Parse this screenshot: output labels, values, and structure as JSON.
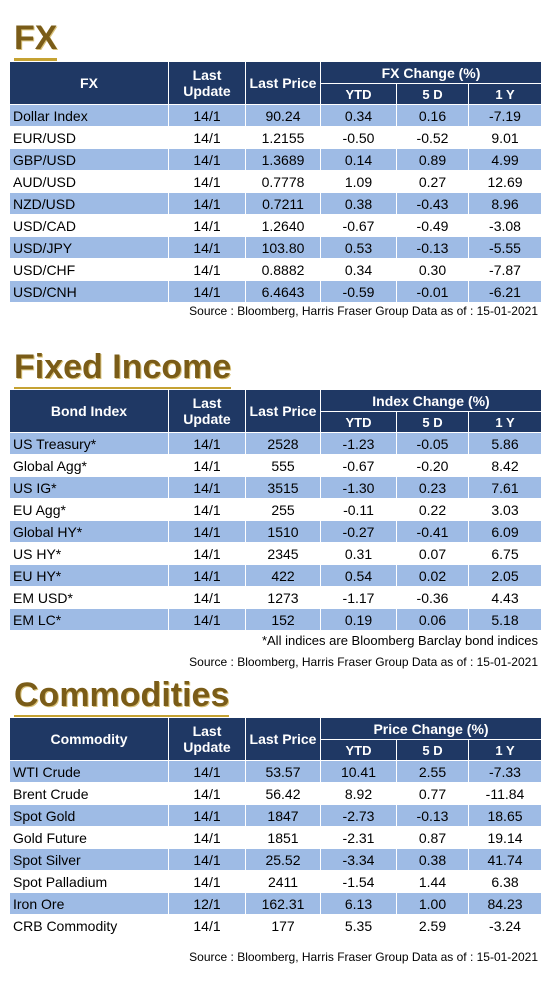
{
  "fx": {
    "title": "FX",
    "header": {
      "name": "FX",
      "last_update": "Last Update",
      "last_price": "Last Price",
      "group": "FX Change (%)",
      "ytd": "YTD",
      "d5": "5 D",
      "y1": "1 Y"
    },
    "rows": [
      {
        "name": "Dollar Index",
        "update": "14/1",
        "price": "90.24",
        "ytd": "0.34",
        "d5": "0.16",
        "y1": "-7.19"
      },
      {
        "name": "EUR/USD",
        "update": "14/1",
        "price": "1.2155",
        "ytd": "-0.50",
        "d5": "-0.52",
        "y1": "9.01"
      },
      {
        "name": "GBP/USD",
        "update": "14/1",
        "price": "1.3689",
        "ytd": "0.14",
        "d5": "0.89",
        "y1": "4.99"
      },
      {
        "name": "AUD/USD",
        "update": "14/1",
        "price": "0.7778",
        "ytd": "1.09",
        "d5": "0.27",
        "y1": "12.69"
      },
      {
        "name": "NZD/USD",
        "update": "14/1",
        "price": "0.7211",
        "ytd": "0.38",
        "d5": "-0.43",
        "y1": "8.96"
      },
      {
        "name": "USD/CAD",
        "update": "14/1",
        "price": "1.2640",
        "ytd": "-0.67",
        "d5": "-0.49",
        "y1": "-3.08"
      },
      {
        "name": "USD/JPY",
        "update": "14/1",
        "price": "103.80",
        "ytd": "0.53",
        "d5": "-0.13",
        "y1": "-5.55"
      },
      {
        "name": "USD/CHF",
        "update": "14/1",
        "price": "0.8882",
        "ytd": "0.34",
        "d5": "0.30",
        "y1": "-7.87"
      },
      {
        "name": "USD/CNH",
        "update": "14/1",
        "price": "6.4643",
        "ytd": "-0.59",
        "d5": "-0.01",
        "y1": "-6.21"
      }
    ],
    "source": "Source : Bloomberg, Harris Fraser Group Data as of : 15-01-2021"
  },
  "fixed_income": {
    "title": "Fixed Income",
    "header": {
      "name": "Bond Index",
      "last_update": "Last Update",
      "last_price": "Last Price",
      "group": "Index Change (%)",
      "ytd": "YTD",
      "d5": "5 D",
      "y1": "1 Y"
    },
    "rows": [
      {
        "name": "US Treasury*",
        "update": "14/1",
        "price": "2528",
        "ytd": "-1.23",
        "d5": "-0.05",
        "y1": "5.86"
      },
      {
        "name": "Global Agg*",
        "update": "14/1",
        "price": "555",
        "ytd": "-0.67",
        "d5": "-0.20",
        "y1": "8.42"
      },
      {
        "name": "US IG*",
        "update": "14/1",
        "price": "3515",
        "ytd": "-1.30",
        "d5": "0.23",
        "y1": "7.61"
      },
      {
        "name": "EU Agg*",
        "update": "14/1",
        "price": "255",
        "ytd": "-0.11",
        "d5": "0.22",
        "y1": "3.03"
      },
      {
        "name": "Global HY*",
        "update": "14/1",
        "price": "1510",
        "ytd": "-0.27",
        "d5": "-0.41",
        "y1": "6.09"
      },
      {
        "name": "US HY*",
        "update": "14/1",
        "price": "2345",
        "ytd": "0.31",
        "d5": "0.07",
        "y1": "6.75"
      },
      {
        "name": "EU HY*",
        "update": "14/1",
        "price": "422",
        "ytd": "0.54",
        "d5": "0.02",
        "y1": "2.05"
      },
      {
        "name": "EM USD*",
        "update": "14/1",
        "price": "1273",
        "ytd": "-1.17",
        "d5": "-0.36",
        "y1": "4.43"
      },
      {
        "name": "EM LC*",
        "update": "14/1",
        "price": "152",
        "ytd": "0.19",
        "d5": "0.06",
        "y1": "5.18"
      }
    ],
    "note": "*All indices are Bloomberg Barclay bond indices",
    "source": "Source : Bloomberg, Harris Fraser Group Data as of : 15-01-2021"
  },
  "commodities": {
    "title": "Commodities",
    "header": {
      "name": "Commodity",
      "last_update": "Last Update",
      "last_price": "Last Price",
      "group": "Price Change (%)",
      "ytd": "YTD",
      "d5": "5 D",
      "y1": "1 Y"
    },
    "rows": [
      {
        "name": "WTI Crude",
        "update": "14/1",
        "price": "53.57",
        "ytd": "10.41",
        "d5": "2.55",
        "y1": "-7.33"
      },
      {
        "name": "Brent Crude",
        "update": "14/1",
        "price": "56.42",
        "ytd": "8.92",
        "d5": "0.77",
        "y1": "-11.84"
      },
      {
        "name": "Spot Gold",
        "update": "14/1",
        "price": "1847",
        "ytd": "-2.73",
        "d5": "-0.13",
        "y1": "18.65"
      },
      {
        "name": "Gold Future",
        "update": "14/1",
        "price": "1851",
        "ytd": "-2.31",
        "d5": "0.87",
        "y1": "19.14"
      },
      {
        "name": "Spot Silver",
        "update": "14/1",
        "price": "25.52",
        "ytd": "-3.34",
        "d5": "0.38",
        "y1": "41.74"
      },
      {
        "name": "Spot Palladium",
        "update": "14/1",
        "price": "2411",
        "ytd": "-1.54",
        "d5": "1.44",
        "y1": "6.38"
      },
      {
        "name": "Iron Ore",
        "update": "12/1",
        "price": "162.31",
        "ytd": "6.13",
        "d5": "1.00",
        "y1": "84.23"
      },
      {
        "name": "CRB Commodity",
        "update": "14/1",
        "price": "177",
        "ytd": "5.35",
        "d5": "2.59",
        "y1": "-3.24"
      }
    ],
    "source": "Source : Bloomberg, Harris Fraser Group Data as of : 15-01-2021"
  },
  "colors": {
    "header_bg": "#1f3864",
    "alt_row": "#9ebbe5",
    "title_text": "#7a5c18",
    "title_underline": "#c5a232"
  }
}
